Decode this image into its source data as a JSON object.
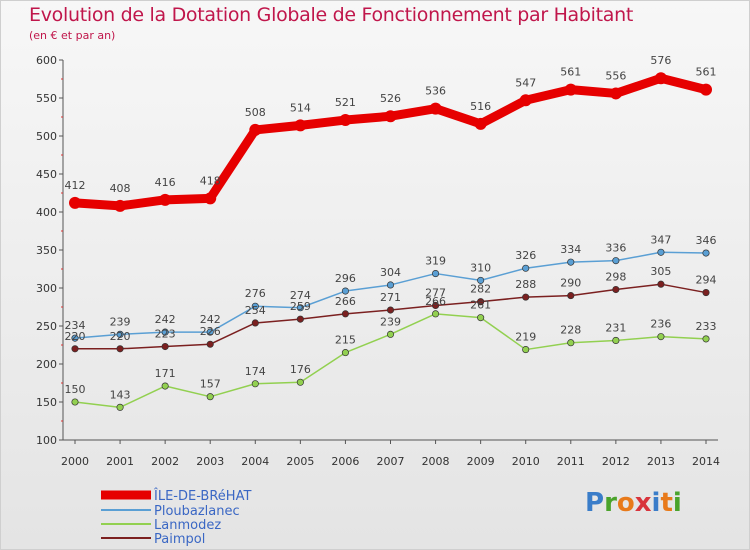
{
  "title": "Evolution de la Dotation Globale de Fonctionnement par Habitant",
  "subtitle": "(en € et par an)",
  "logo": {
    "text": "Proxiti",
    "colors": [
      "#3a7dc9",
      "#4aa32b",
      "#e87a1a",
      "#d8343c",
      "#3a7dc9",
      "#e87a1a",
      "#4aa32b"
    ]
  },
  "chart_data": {
    "type": "line",
    "title": "Evolution de la Dotation Globale de Fonctionnement par Habitant",
    "subtitle": "(en € et par an)",
    "xlabel": "",
    "ylabel": "",
    "x": [
      "2000",
      "2001",
      "2002",
      "2003",
      "2004",
      "2005",
      "2006",
      "2007",
      "2008",
      "2009",
      "2010",
      "2011",
      "2012",
      "2013",
      "2014"
    ],
    "ylim": [
      100,
      600
    ],
    "yticks": [
      100,
      150,
      200,
      250,
      300,
      350,
      400,
      450,
      500,
      550,
      600
    ],
    "grid": false,
    "legend": "bottom-left",
    "series": [
      {
        "name": "ÎLE-DE-BRéHAT",
        "color": "#e60000",
        "values": [
          412,
          408,
          416,
          418,
          508,
          514,
          521,
          526,
          536,
          516,
          547,
          561,
          556,
          576,
          561
        ]
      },
      {
        "name": "Ploubazlanec",
        "color": "#5a9fd4",
        "values": [
          234,
          239,
          242,
          242,
          276,
          274,
          296,
          304,
          319,
          310,
          326,
          334,
          336,
          347,
          346
        ]
      },
      {
        "name": "Lanmodez",
        "color": "#92d050",
        "values": [
          150,
          143,
          171,
          157,
          174,
          176,
          215,
          239,
          266,
          261,
          219,
          228,
          231,
          236,
          233
        ]
      },
      {
        "name": "Paimpol",
        "color": "#7b2020",
        "values": [
          220,
          220,
          223,
          226,
          254,
          259,
          266,
          271,
          277,
          282,
          288,
          290,
          298,
          305,
          294
        ]
      }
    ]
  }
}
